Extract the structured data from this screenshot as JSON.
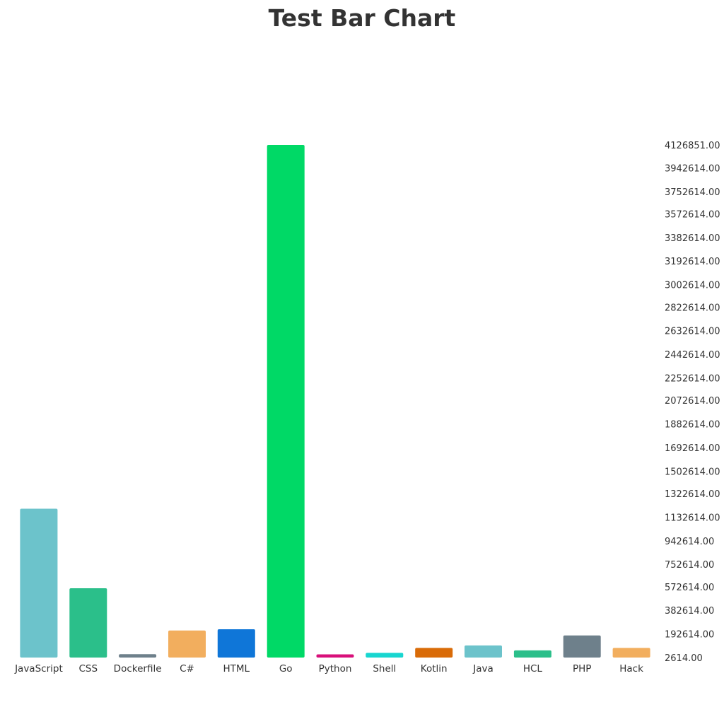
{
  "chart_data": {
    "type": "bar",
    "title": "Test Bar Chart",
    "xlabel": "",
    "ylabel": "",
    "categories": [
      "JavaScript",
      "CSS",
      "Dockerfile",
      "C#",
      "HTML",
      "Go",
      "Python",
      "Shell",
      "Kotlin",
      "Java",
      "HCL",
      "PHP",
      "Hack"
    ],
    "values": [
      1200000,
      560000,
      30000,
      220000,
      230000,
      4126851,
      28000,
      40000,
      80000,
      100000,
      60000,
      180000,
      80000
    ],
    "colors": [
      "#6cc3cb",
      "#2bbf8a",
      "#6e808b",
      "#f2ae5e",
      "#0f76d8",
      "#00d966",
      "#d8107a",
      "#18d6d0",
      "#d96b08",
      "#6cc3cb",
      "#2bbf8a",
      "#6e808b",
      "#f2ae5e"
    ],
    "ylim": [
      2614,
      4126851
    ],
    "yticks": [
      "4126851.00",
      "3942614.00",
      "3752614.00",
      "3572614.00",
      "3382614.00",
      "3192614.00",
      "3002614.00",
      "2822614.00",
      "2632614.00",
      "2442614.00",
      "2252614.00",
      "2072614.00",
      "1882614.00",
      "1692614.00",
      "1502614.00",
      "1322614.00",
      "1132614.00",
      "942614.00",
      "752614.00",
      "572614.00",
      "382614.00",
      "192614.00",
      "2614.00"
    ],
    "ytick_values": [
      4126851,
      3942614,
      3752614,
      3572614,
      3382614,
      3192614,
      3002614,
      2822614,
      2632614,
      2442614,
      2252614,
      2072614,
      1882614,
      1692614,
      1502614,
      1322614,
      1132614,
      942614,
      752614,
      572614,
      382614,
      192614,
      2614
    ],
    "grid": false,
    "legend": "none",
    "yaxis_position": "right"
  }
}
